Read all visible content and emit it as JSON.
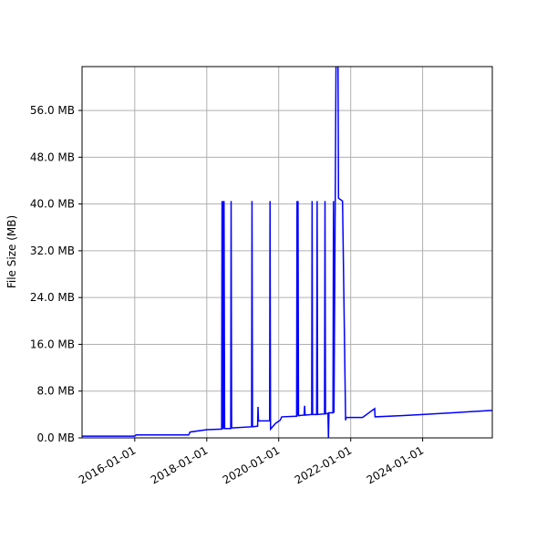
{
  "chart_data": {
    "type": "line",
    "y_label": "File Size (MB)",
    "grid": true,
    "xlim": [
      "2014-07-15",
      "2025-12-08"
    ],
    "xticks": [
      "2016-01-01",
      "2018-01-01",
      "2020-01-01",
      "2022-01-01",
      "2024-01-01"
    ],
    "ylim": [
      0,
      63.5
    ],
    "yticks": [
      {
        "value": 0,
        "label": "0.0 MB"
      },
      {
        "value": 8,
        "label": "8.0 MB"
      },
      {
        "value": 16,
        "label": "16.0 MB"
      },
      {
        "value": 24,
        "label": "24.0 MB"
      },
      {
        "value": 32,
        "label": "32.0 MB"
      },
      {
        "value": 40,
        "label": "40.0 MB"
      },
      {
        "value": 48,
        "label": "48.0 MB"
      },
      {
        "value": 56,
        "label": "56.0 MB"
      }
    ],
    "series": [
      {
        "color": "#0000ff",
        "x": [
          "2014-07-15",
          "2016-01-01",
          "2016-01-15",
          "2017-07-01",
          "2017-07-15",
          "2018-01-01",
          "2018-06-01",
          "2018-06-05",
          "2018-06-10",
          "2018-06-15",
          "2018-06-20",
          "2018-06-25",
          "2018-07-01",
          "2018-09-01",
          "2018-09-05",
          "2018-09-10",
          "2019-04-01",
          "2019-04-05",
          "2019-04-10",
          "2019-06-01",
          "2019-06-05",
          "2019-06-10",
          "2019-10-01",
          "2019-10-05",
          "2019-10-10",
          "2019-12-01",
          "2020-01-15",
          "2020-02-01",
          "2020-07-01",
          "2020-07-05",
          "2020-07-10",
          "2020-07-15",
          "2020-07-20",
          "2020-09-15",
          "2020-09-20",
          "2020-09-25",
          "2020-12-01",
          "2020-12-05",
          "2020-12-10",
          "2021-01-20",
          "2021-01-25",
          "2021-01-30",
          "2021-04-10",
          "2021-04-15",
          "2021-04-20",
          "2021-05-15",
          "2021-05-20",
          "2021-05-25",
          "2021-07-05",
          "2021-07-10",
          "2021-07-15",
          "2021-08-05",
          "2021-08-25",
          "2021-08-30",
          "2021-10-10",
          "2021-11-10",
          "2021-11-15",
          "2022-05-01",
          "2022-09-01",
          "2022-09-05",
          "2023-06-01",
          "2024-01-01",
          "2025-12-08"
        ],
        "values": [
          0.3,
          0.3,
          0.5,
          0.5,
          1.0,
          1.4,
          1.5,
          40.5,
          1.5,
          40.5,
          1.5,
          40.5,
          1.6,
          1.6,
          40.5,
          1.7,
          1.9,
          40.5,
          1.9,
          2.0,
          5.3,
          2.9,
          2.9,
          40.5,
          1.5,
          2.5,
          3.0,
          3.6,
          3.7,
          40.5,
          3.8,
          40.5,
          3.8,
          3.9,
          5.5,
          3.9,
          4.0,
          40.5,
          4.0,
          4.0,
          40.5,
          4.0,
          4.1,
          40.5,
          4.1,
          4.2,
          0,
          4.3,
          4.3,
          40.5,
          4.3,
          64,
          64,
          41,
          40.5,
          3.0,
          3.5,
          3.5,
          5.0,
          3.6,
          3.8,
          4.0,
          4.7
        ]
      }
    ]
  }
}
